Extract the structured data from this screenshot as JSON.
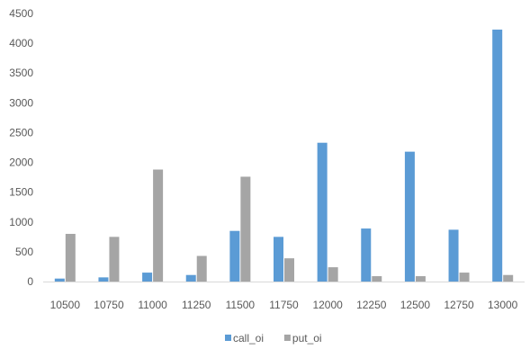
{
  "chart_data": {
    "type": "bar",
    "title": "",
    "xlabel": "",
    "ylabel": "",
    "ylim": [
      0,
      4500
    ],
    "yticks": [
      0,
      500,
      1000,
      1500,
      2000,
      2500,
      3000,
      3500,
      4000,
      4500
    ],
    "grid": false,
    "legend_position": "bottom",
    "categories": [
      "10500",
      "10750",
      "11000",
      "11250",
      "11500",
      "11750",
      "12000",
      "12250",
      "12500",
      "12750",
      "13000"
    ],
    "series": [
      {
        "name": "call_oi",
        "color": "#5b9bd5",
        "values": [
          50,
          70,
          150,
          110,
          850,
          750,
          2330,
          890,
          2180,
          870,
          4230
        ]
      },
      {
        "name": "put_oi",
        "color": "#a5a5a5",
        "values": [
          800,
          750,
          1880,
          430,
          1760,
          390,
          240,
          90,
          90,
          150,
          110
        ]
      }
    ]
  }
}
